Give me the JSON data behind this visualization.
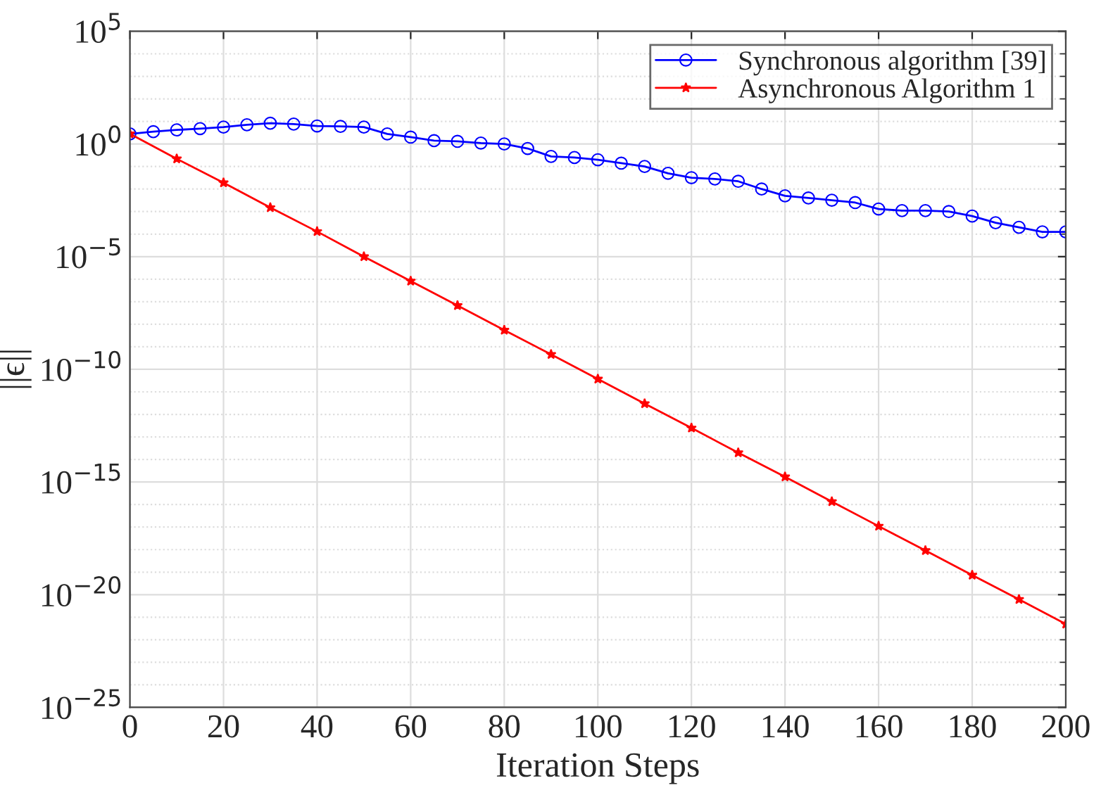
{
  "chart_data": {
    "type": "line",
    "xlabel": "Iteration Steps",
    "ylabel": "||ϵ||",
    "log": "y",
    "grid": true,
    "legend": "top right",
    "xlim": [
      0,
      200
    ],
    "xticks": [
      0,
      20,
      40,
      60,
      80,
      100,
      120,
      140,
      160,
      180,
      200
    ],
    "ylim": [
      1e-25,
      100000.0
    ],
    "yticks": [
      {
        "value": 1e-25,
        "label": "10$^{−25}$"
      },
      {
        "value": 1e-20,
        "label": "10$^{−20}$"
      },
      {
        "value": 1e-15,
        "label": "10$^{−15}$"
      },
      {
        "value": 1e-10,
        "label": "10$^{−10}$"
      },
      {
        "value": 1e-05,
        "label": "10$^{−5}$"
      },
      {
        "value": 1,
        "label": "10$^{0}$"
      },
      {
        "value": 100000.0,
        "label": "10$^{5}$"
      }
    ],
    "series": [
      {
        "name": "Synchronous algorithm [39]",
        "color": "#0000ff",
        "marker": "circle",
        "x": [
          0,
          5,
          10,
          15,
          20,
          25,
          30,
          35,
          40,
          45,
          50,
          55,
          60,
          65,
          70,
          75,
          80,
          85,
          90,
          95,
          100,
          105,
          110,
          115,
          120,
          125,
          130,
          135,
          140,
          145,
          150,
          155,
          160,
          165,
          170,
          175,
          180,
          185,
          190,
          195,
          200
        ],
        "values": [
          2.8,
          3.5,
          4.2,
          4.8,
          5.6,
          7.1,
          8.3,
          7.6,
          6.3,
          6.0,
          5.6,
          2.8,
          2.0,
          1.4,
          1.3,
          1.1,
          1.0,
          0.63,
          0.28,
          0.25,
          0.2,
          0.14,
          0.1,
          0.05,
          0.032,
          0.028,
          0.022,
          0.01,
          0.005,
          0.004,
          0.0032,
          0.0025,
          0.0013,
          0.0011,
          0.0011,
          0.001,
          0.00063,
          0.00032,
          0.0002,
          0.000126,
          0.000126
        ]
      },
      {
        "name": "Asynchronous Algorithm 1",
        "color": "#ff0000",
        "marker": "star",
        "x": [
          0,
          10,
          20,
          30,
          40,
          50,
          60,
          70,
          80,
          90,
          100,
          110,
          120,
          130,
          140,
          150,
          160,
          170,
          180,
          190,
          200
        ],
        "values": [
          2.8,
          0.22,
          0.019,
          0.0015,
          0.00013,
          1e-05,
          8.3e-07,
          6.8e-08,
          5.5e-09,
          4.6e-10,
          3.7e-11,
          3e-12,
          2.5e-13,
          2e-14,
          1.7e-15,
          1.35e-16,
          1.1e-17,
          9.1e-19,
          7.4e-20,
          6.2e-21,
          5e-22
        ]
      }
    ]
  }
}
